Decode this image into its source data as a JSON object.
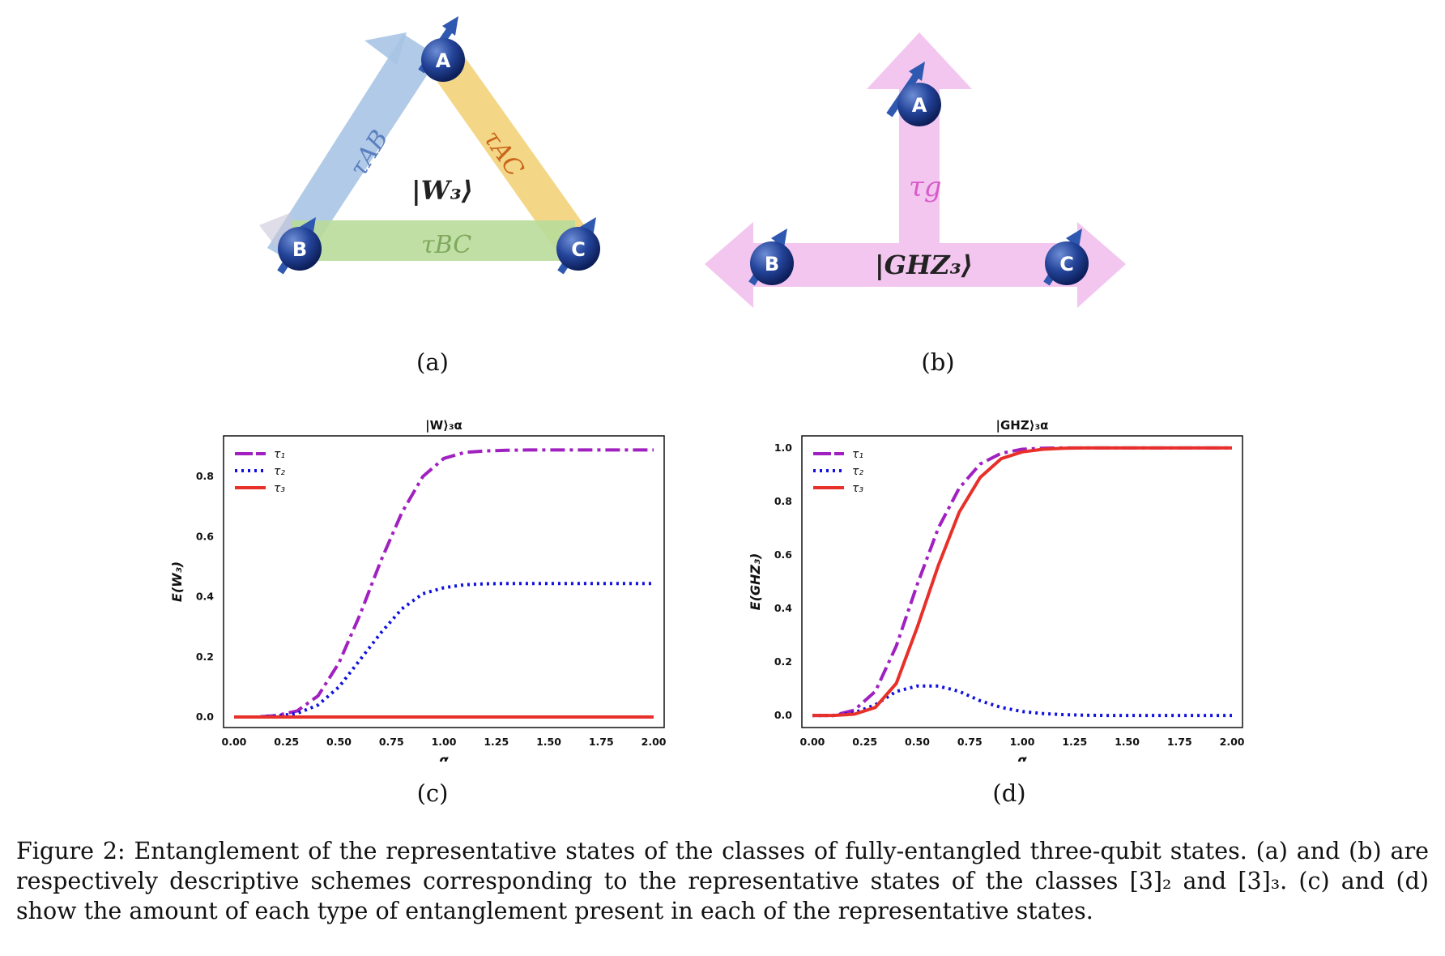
{
  "figure_number": "Figure 2:",
  "caption": "Entanglement of the representative states of the classes of fully-entangled three-qubit states. (a) and (b) are respectively descriptive schemes corresponding to the representative states of the classes [3]₂ and [3]₃. (c) and (d) show the amount of each type of entanglement present in each of the representative states.",
  "panels": {
    "a": {
      "label": "(a)",
      "qubits": [
        "A",
        "B",
        "C"
      ],
      "state": "|W₃⟩",
      "edges": [
        "τAB",
        "τAC",
        "τBC"
      ],
      "edge_colors": {
        "AB": "#a8c4e4",
        "AC": "#f3d27a",
        "BC": "#b9dc9a"
      },
      "edge_text_colors": {
        "AB": "#5b7fc0",
        "AC": "#c8651a",
        "BC": "#7fa85e"
      }
    },
    "b": {
      "label": "(b)",
      "qubits": [
        "A",
        "B",
        "C"
      ],
      "state": "|GHZ₃⟩",
      "edge": "τg",
      "color": "#f3c6f0",
      "edge_text_color": "#d85bc9"
    },
    "c": {
      "label": "(c)"
    },
    "d": {
      "label": "(d)"
    }
  },
  "chart_data": [
    {
      "type": "line",
      "title": "|W⟩₃α",
      "xlabel": "α",
      "ylabel": "E(W₃)",
      "xlim": [
        -0.05,
        2.05
      ],
      "ylim": [
        -0.035,
        0.935
      ],
      "xticks": [
        "0.00",
        "0.25",
        "0.50",
        "0.75",
        "1.00",
        "1.25",
        "1.50",
        "1.75",
        "2.00"
      ],
      "yticks": [
        "0.0",
        "0.2",
        "0.4",
        "0.6",
        "0.8"
      ],
      "legend_position": "top-left",
      "x": [
        0.0,
        0.1,
        0.2,
        0.3,
        0.4,
        0.5,
        0.6,
        0.7,
        0.8,
        0.9,
        1.0,
        1.1,
        1.2,
        1.3,
        1.4,
        1.5,
        1.6,
        1.7,
        1.8,
        1.9,
        2.0
      ],
      "series": [
        {
          "name": "τ₁",
          "color": "#a020c0",
          "style": "dashdot",
          "values": [
            0.0,
            0.0,
            0.005,
            0.02,
            0.07,
            0.18,
            0.34,
            0.52,
            0.68,
            0.8,
            0.86,
            0.88,
            0.885,
            0.887,
            0.888,
            0.888,
            0.888,
            0.888,
            0.888,
            0.888,
            0.888
          ]
        },
        {
          "name": "τ₂",
          "color": "#1010e0",
          "style": "dotted",
          "values": [
            0.0,
            0.0,
            0.003,
            0.012,
            0.04,
            0.1,
            0.19,
            0.28,
            0.36,
            0.41,
            0.43,
            0.44,
            0.443,
            0.444,
            0.444,
            0.444,
            0.444,
            0.444,
            0.444,
            0.444,
            0.444
          ]
        },
        {
          "name": "τ₃",
          "color": "#e8302a",
          "style": "solid",
          "values": [
            0.0,
            0.0,
            0.0,
            0.0,
            0.0,
            0.0,
            0.0,
            0.0,
            0.0,
            0.0,
            0.0,
            0.0,
            0.0,
            0.0,
            0.0,
            0.0,
            0.0,
            0.0,
            0.0,
            0.0,
            0.0
          ]
        }
      ]
    },
    {
      "type": "line",
      "title": "|GHZ⟩₃α",
      "xlabel": "α",
      "ylabel": "E(GHZ₃)",
      "xlim": [
        -0.05,
        2.05
      ],
      "ylim": [
        -0.045,
        1.045
      ],
      "xticks": [
        "0.00",
        "0.25",
        "0.50",
        "0.75",
        "1.00",
        "1.25",
        "1.50",
        "1.75",
        "2.00"
      ],
      "yticks": [
        "0.0",
        "0.2",
        "0.4",
        "0.6",
        "0.8",
        "1.0"
      ],
      "legend_position": "top-left",
      "x": [
        0.0,
        0.1,
        0.2,
        0.3,
        0.4,
        0.5,
        0.6,
        0.7,
        0.8,
        0.9,
        1.0,
        1.1,
        1.2,
        1.3,
        1.4,
        1.5,
        1.6,
        1.7,
        1.8,
        1.9,
        2.0
      ],
      "series": [
        {
          "name": "τ₁",
          "color": "#a020c0",
          "style": "dashdot",
          "values": [
            0.0,
            0.0,
            0.02,
            0.09,
            0.26,
            0.49,
            0.7,
            0.85,
            0.94,
            0.98,
            0.995,
            0.999,
            1.0,
            1.0,
            1.0,
            1.0,
            1.0,
            1.0,
            1.0,
            1.0,
            1.0
          ]
        },
        {
          "name": "τ₂",
          "color": "#1010e0",
          "style": "dotted",
          "values": [
            0.0,
            0.0,
            0.01,
            0.04,
            0.09,
            0.11,
            0.11,
            0.09,
            0.055,
            0.03,
            0.015,
            0.007,
            0.003,
            0.001,
            0.0,
            0.0,
            0.0,
            0.0,
            0.0,
            0.0,
            0.0
          ]
        },
        {
          "name": "τ₃",
          "color": "#e8302a",
          "style": "solid",
          "values": [
            0.0,
            0.0,
            0.005,
            0.03,
            0.12,
            0.33,
            0.56,
            0.76,
            0.89,
            0.96,
            0.985,
            0.995,
            0.999,
            1.0,
            1.0,
            1.0,
            1.0,
            1.0,
            1.0,
            1.0,
            1.0
          ]
        }
      ]
    }
  ]
}
